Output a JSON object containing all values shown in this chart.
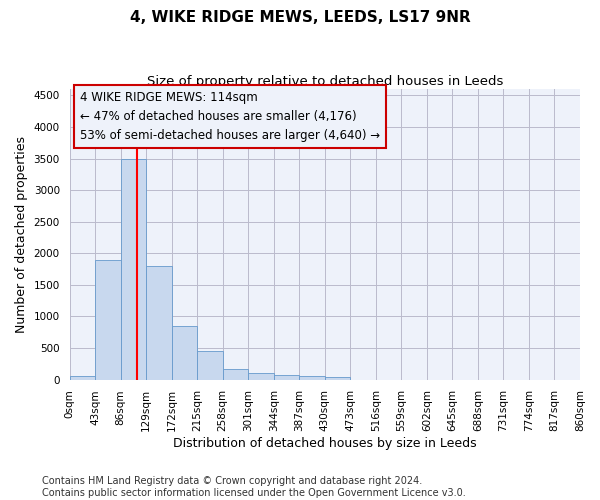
{
  "title": "4, WIKE RIDGE MEWS, LEEDS, LS17 9NR",
  "subtitle": "Size of property relative to detached houses in Leeds",
  "xlabel": "Distribution of detached houses by size in Leeds",
  "ylabel": "Number of detached properties",
  "bar_color": "#c8d8ee",
  "bar_edge_color": "#6699cc",
  "grid_color": "#bbbbcc",
  "background_color": "#ffffff",
  "plot_bg_color": "#eef2fa",
  "tick_labels": [
    "0sqm",
    "43sqm",
    "86sqm",
    "129sqm",
    "172sqm",
    "215sqm",
    "258sqm",
    "301sqm",
    "344sqm",
    "387sqm",
    "430sqm",
    "473sqm",
    "516sqm",
    "559sqm",
    "602sqm",
    "645sqm",
    "688sqm",
    "731sqm",
    "774sqm",
    "817sqm",
    "860sqm"
  ],
  "bar_values": [
    50,
    1900,
    3500,
    1800,
    850,
    460,
    165,
    100,
    70,
    50,
    35,
    0,
    0,
    0,
    0,
    0,
    0,
    0,
    0,
    0
  ],
  "ylim": [
    0,
    4600
  ],
  "yticks": [
    0,
    500,
    1000,
    1500,
    2000,
    2500,
    3000,
    3500,
    4000,
    4500
  ],
  "vline_x": 2.651,
  "ann_line1": "4 WIKE RIDGE MEWS: 114sqm",
  "ann_line2": "← 47% of detached houses are smaller (4,176)",
  "ann_line3": "53% of semi-detached houses are larger (4,640) →",
  "annotation_box_color": "#cc0000",
  "footer_line1": "Contains HM Land Registry data © Crown copyright and database right 2024.",
  "footer_line2": "Contains public sector information licensed under the Open Government Licence v3.0.",
  "title_fontsize": 11,
  "subtitle_fontsize": 9.5,
  "label_fontsize": 9,
  "tick_fontsize": 7.5,
  "ann_fontsize": 8.5,
  "footer_fontsize": 7
}
